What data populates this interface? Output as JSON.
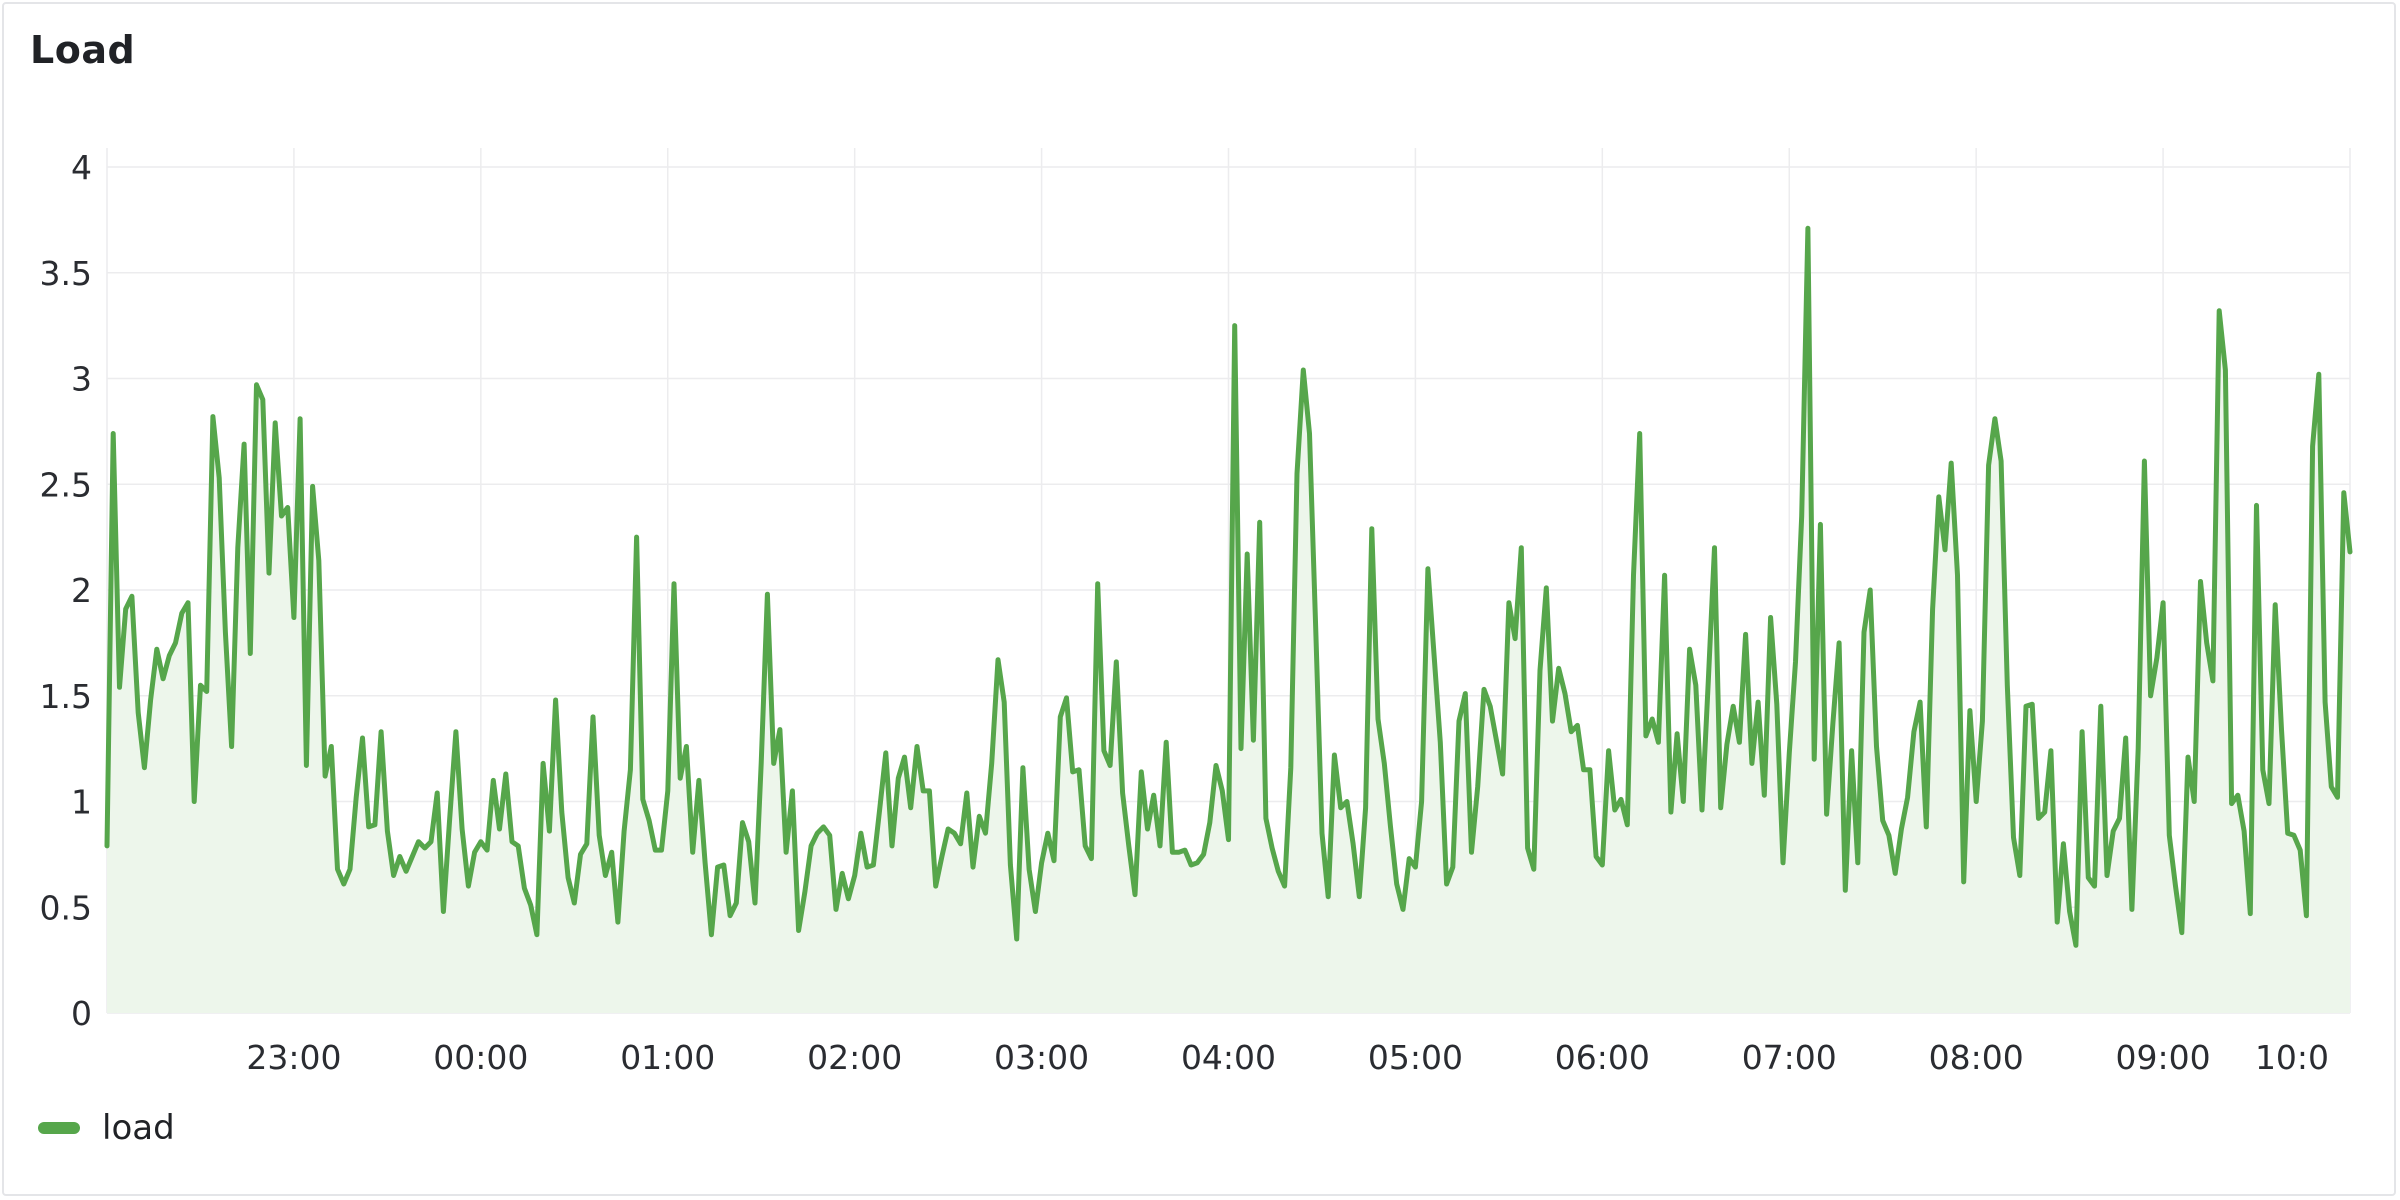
{
  "panel": {
    "title": "Load"
  },
  "colors": {
    "series": "#56a64b",
    "fill": "#edf6eb",
    "grid": "#ececee",
    "text": "#202226"
  },
  "chart_data": {
    "type": "area",
    "title": "Load",
    "xlabel": "",
    "ylabel": "",
    "x_ticks": [
      "23:00",
      "00:00",
      "01:00",
      "02:00",
      "03:00",
      "04:00",
      "05:00",
      "06:00",
      "07:00",
      "08:00",
      "09:00",
      "10:0"
    ],
    "y_ticks": [
      "0",
      "0.5",
      "1",
      "1.5",
      "2",
      "2.5",
      "3",
      "3.5",
      "4"
    ],
    "x_range": [
      "22:00",
      "10:00"
    ],
    "ylim": [
      0,
      4
    ],
    "grid": true,
    "legend_position": "bottom-left",
    "series": [
      {
        "name": "load",
        "color": "#56a64b",
        "x": [
          "22:00",
          "22:02",
          "22:04",
          "22:06",
          "22:08",
          "22:10",
          "22:12",
          "22:14",
          "22:16",
          "22:18",
          "22:20",
          "22:22",
          "22:24",
          "22:26",
          "22:28",
          "22:30",
          "22:32",
          "22:34",
          "22:36",
          "22:38",
          "22:40",
          "22:42",
          "22:44",
          "22:46",
          "22:48",
          "22:50",
          "22:52",
          "22:54",
          "22:56",
          "22:58",
          "23:00",
          "23:02",
          "23:04",
          "23:06",
          "23:08",
          "23:10",
          "23:12",
          "23:14",
          "23:16",
          "23:18",
          "23:20",
          "23:22",
          "23:24",
          "23:26",
          "23:28",
          "23:30",
          "23:32",
          "23:34",
          "23:36",
          "23:38",
          "23:40",
          "23:42",
          "23:44",
          "23:46",
          "23:48",
          "23:50",
          "23:52",
          "23:54",
          "23:56",
          "23:58",
          "00:00",
          "00:02",
          "00:04",
          "00:06",
          "00:08",
          "00:10",
          "00:12",
          "00:14",
          "00:16",
          "00:18",
          "00:20",
          "00:22",
          "00:24",
          "00:26",
          "00:28",
          "00:30",
          "00:32",
          "00:34",
          "00:36",
          "00:38",
          "00:40",
          "00:42",
          "00:44",
          "00:46",
          "00:48",
          "00:50",
          "00:52",
          "00:54",
          "00:56",
          "00:58",
          "01:00",
          "01:02",
          "01:04",
          "01:06",
          "01:08",
          "01:10",
          "01:12",
          "01:14",
          "01:16",
          "01:18",
          "01:20",
          "01:22",
          "01:24",
          "01:26",
          "01:28",
          "01:30",
          "01:32",
          "01:34",
          "01:36",
          "01:38",
          "01:40",
          "01:42",
          "01:44",
          "01:46",
          "01:48",
          "01:50",
          "01:52",
          "01:54",
          "01:56",
          "01:58",
          "02:00",
          "02:02",
          "02:04",
          "02:06",
          "02:08",
          "02:10",
          "02:12",
          "02:14",
          "02:16",
          "02:18",
          "02:20",
          "02:22",
          "02:24",
          "02:26",
          "02:28",
          "02:30",
          "02:32",
          "02:34",
          "02:36",
          "02:38",
          "02:40",
          "02:42",
          "02:44",
          "02:46",
          "02:48",
          "02:50",
          "02:52",
          "02:54",
          "02:56",
          "02:58",
          "03:00",
          "03:02",
          "03:04",
          "03:06",
          "03:08",
          "03:10",
          "03:12",
          "03:14",
          "03:16",
          "03:18",
          "03:20",
          "03:22",
          "03:24",
          "03:26",
          "03:28",
          "03:30",
          "03:32",
          "03:34",
          "03:36",
          "03:38",
          "03:40",
          "03:42",
          "03:44",
          "03:46",
          "03:48",
          "03:50",
          "03:52",
          "03:54",
          "03:56",
          "03:58",
          "04:00",
          "04:02",
          "04:04",
          "04:06",
          "04:08",
          "04:10",
          "04:12",
          "04:14",
          "04:16",
          "04:18",
          "04:20",
          "04:22",
          "04:24",
          "04:26",
          "04:28",
          "04:30",
          "04:32",
          "04:34",
          "04:36",
          "04:38",
          "04:40",
          "04:42",
          "04:44",
          "04:46",
          "04:48",
          "04:50",
          "04:52",
          "04:54",
          "04:56",
          "04:58",
          "05:00",
          "05:02",
          "05:04",
          "05:06",
          "05:08",
          "05:10",
          "05:12",
          "05:14",
          "05:16",
          "05:18",
          "05:20",
          "05:22",
          "05:24",
          "05:26",
          "05:28",
          "05:30",
          "05:32",
          "05:34",
          "05:36",
          "05:38",
          "05:40",
          "05:42",
          "05:44",
          "05:46",
          "05:48",
          "05:50",
          "05:52",
          "05:54",
          "05:56",
          "05:58",
          "06:00",
          "06:02",
          "06:04",
          "06:06",
          "06:08",
          "06:10",
          "06:12",
          "06:14",
          "06:16",
          "06:18",
          "06:20",
          "06:22",
          "06:24",
          "06:26",
          "06:28",
          "06:30",
          "06:32",
          "06:34",
          "06:36",
          "06:38",
          "06:40",
          "06:42",
          "06:44",
          "06:46",
          "06:48",
          "06:50",
          "06:52",
          "06:54",
          "06:56",
          "06:58",
          "07:00",
          "07:02",
          "07:04",
          "07:06",
          "07:08",
          "07:10",
          "07:12",
          "07:14",
          "07:16",
          "07:18",
          "07:20",
          "07:22",
          "07:24",
          "07:26",
          "07:28",
          "07:30",
          "07:32",
          "07:34",
          "07:36",
          "07:38",
          "07:40",
          "07:42",
          "07:44",
          "07:46",
          "07:48",
          "07:50",
          "07:52",
          "07:54",
          "07:56",
          "07:58",
          "08:00",
          "08:02",
          "08:04",
          "08:06",
          "08:08",
          "08:10",
          "08:12",
          "08:14",
          "08:16",
          "08:18",
          "08:20",
          "08:22",
          "08:24",
          "08:26",
          "08:28",
          "08:30",
          "08:32",
          "08:34",
          "08:36",
          "08:38",
          "08:40",
          "08:42",
          "08:44",
          "08:46",
          "08:48",
          "08:50",
          "08:52",
          "08:54",
          "08:56",
          "08:58",
          "09:00",
          "09:02",
          "09:04",
          "09:06",
          "09:08",
          "09:10",
          "09:12",
          "09:14",
          "09:16",
          "09:18",
          "09:20",
          "09:22",
          "09:24",
          "09:26",
          "09:28",
          "09:30",
          "09:32",
          "09:34",
          "09:36",
          "09:38",
          "09:40",
          "09:42",
          "09:44",
          "09:46",
          "09:48",
          "09:50",
          "09:52",
          "09:54",
          "09:56",
          "09:58",
          "10:00"
        ],
        "values": [
          0.79,
          2.74,
          1.54,
          1.91,
          1.97,
          1.42,
          1.16,
          1.48,
          1.72,
          1.58,
          1.69,
          1.75,
          1.89,
          1.94,
          1.0,
          1.55,
          1.52,
          2.82,
          2.53,
          1.8,
          1.26,
          2.2,
          2.69,
          1.7,
          2.97,
          2.9,
          2.08,
          2.79,
          2.35,
          2.39,
          1.87,
          2.81,
          1.17,
          2.49,
          2.14,
          1.12,
          1.26,
          0.68,
          0.61,
          0.68,
          1.02,
          1.3,
          0.88,
          0.89,
          1.33,
          0.86,
          0.65,
          0.74,
          0.67,
          0.74,
          0.81,
          0.78,
          0.81,
          1.04,
          0.48,
          0.92,
          1.33,
          0.87,
          0.6,
          0.76,
          0.81,
          0.77,
          1.1,
          0.87,
          1.13,
          0.81,
          0.79,
          0.59,
          0.51,
          0.37,
          1.18,
          0.86,
          1.48,
          0.95,
          0.64,
          0.52,
          0.75,
          0.8,
          1.4,
          0.84,
          0.65,
          0.76,
          0.43,
          0.86,
          1.15,
          2.25,
          1.01,
          0.91,
          0.77,
          0.77,
          1.05,
          2.03,
          1.11,
          1.26,
          0.76,
          1.1,
          0.71,
          0.37,
          0.69,
          0.7,
          0.46,
          0.52,
          0.9,
          0.81,
          0.52,
          1.18,
          1.98,
          1.18,
          1.34,
          0.76,
          1.05,
          0.39,
          0.57,
          0.79,
          0.85,
          0.88,
          0.84,
          0.49,
          0.66,
          0.54,
          0.65,
          0.85,
          0.69,
          0.7,
          0.96,
          1.23,
          0.79,
          1.11,
          1.21,
          0.97,
          1.26,
          1.05,
          1.05,
          0.6,
          0.74,
          0.87,
          0.85,
          0.8,
          1.04,
          0.69,
          0.93,
          0.85,
          1.18,
          1.67,
          1.47,
          0.7,
          0.35,
          1.16,
          0.68,
          0.48,
          0.71,
          0.85,
          0.72,
          1.4,
          1.49,
          1.14,
          1.15,
          0.79,
          0.73,
          2.03,
          1.24,
          1.17,
          1.66,
          1.04,
          0.79,
          0.56,
          1.14,
          0.87,
          1.03,
          0.79,
          1.28,
          0.76,
          0.76,
          0.77,
          0.7,
          0.71,
          0.75,
          0.9,
          1.17,
          1.05,
          0.82,
          3.25,
          1.25,
          2.17,
          1.29,
          2.32,
          0.92,
          0.78,
          0.67,
          0.6,
          1.16,
          2.55,
          3.04,
          2.74,
          1.82,
          0.85,
          0.55,
          1.22,
          0.97,
          1.0,
          0.8,
          0.55,
          0.97,
          2.29,
          1.39,
          1.18,
          0.88,
          0.61,
          0.49,
          0.73,
          0.69,
          1.0,
          2.1,
          1.69,
          1.28,
          0.61,
          0.69,
          1.38,
          1.51,
          0.76,
          1.07,
          1.53,
          1.45,
          1.29,
          1.13,
          1.94,
          1.77,
          2.2,
          0.78,
          0.68,
          1.62,
          2.01,
          1.38,
          1.63,
          1.51,
          1.33,
          1.36,
          1.15,
          1.15,
          0.74,
          0.7,
          1.24,
          0.96,
          1.01,
          0.89,
          2.07,
          2.74,
          1.31,
          1.39,
          1.28,
          2.07,
          0.95,
          1.32,
          1.0,
          1.72,
          1.55,
          0.96,
          1.57,
          2.2,
          0.97,
          1.27,
          1.45,
          1.28,
          1.79,
          1.18,
          1.47,
          1.03,
          1.87,
          1.46,
          0.71,
          1.23,
          1.66,
          2.35,
          3.71,
          1.2,
          2.31,
          0.94,
          1.37,
          1.75,
          0.58,
          1.24,
          0.71,
          1.8,
          2.0,
          1.26,
          0.91,
          0.84,
          0.66,
          0.87,
          1.02,
          1.33,
          1.47,
          0.88,
          1.91,
          2.44,
          2.19,
          2.6,
          2.07,
          0.62,
          1.43,
          1.0,
          1.38,
          2.59,
          2.81,
          2.61,
          1.55,
          0.83,
          0.65,
          1.45,
          1.46,
          0.92,
          0.95,
          1.24,
          0.43,
          0.8,
          0.48,
          0.32,
          1.33,
          0.64,
          0.6,
          1.45,
          0.65,
          0.86,
          0.92,
          1.3,
          0.49,
          1.25,
          2.61,
          1.5,
          1.68,
          1.94,
          0.84,
          0.6,
          0.38,
          1.21,
          1.0,
          2.04,
          1.75,
          1.57,
          3.32,
          3.04,
          0.99,
          1.03,
          0.86,
          0.47,
          2.4,
          1.15,
          0.99,
          1.93,
          1.34,
          0.85,
          0.84,
          0.77,
          0.46,
          2.68,
          3.02,
          1.47,
          1.07,
          1.02,
          2.46,
          2.18
        ]
      }
    ]
  },
  "legend": {
    "items": [
      {
        "label": "load",
        "color": "#56a64b"
      }
    ]
  }
}
